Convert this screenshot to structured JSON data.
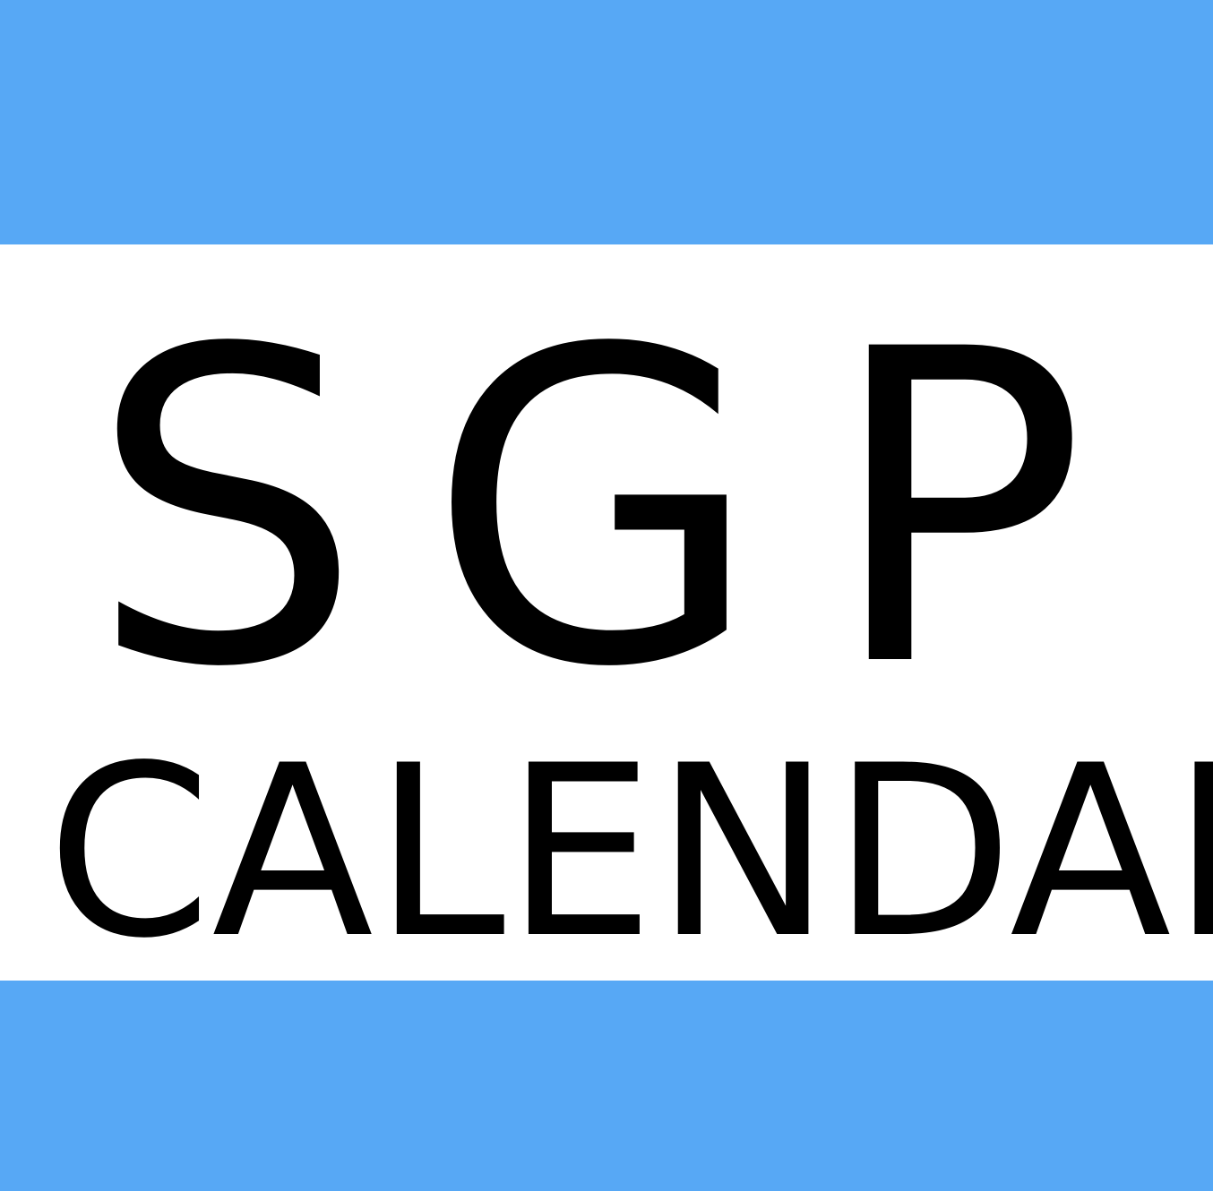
{
  "colors": {
    "band": "#57a8f5",
    "background": "#ffffff",
    "text": "#000000"
  },
  "logo": {
    "title": "SGP",
    "subtitle": "CALENDAR"
  }
}
